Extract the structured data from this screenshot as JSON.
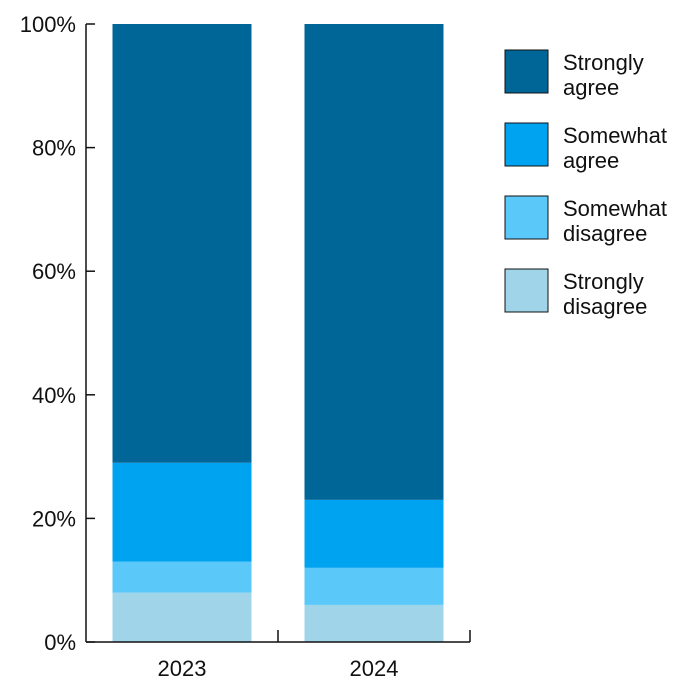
{
  "chart_data": {
    "type": "bar",
    "stacked": true,
    "percent": true,
    "categories": [
      "2023",
      "2024"
    ],
    "series": [
      {
        "name": "Strongly disagree",
        "color": "#a0d4e8",
        "values": [
          8,
          6
        ]
      },
      {
        "name": "Somewhat disagree",
        "color": "#5bc8fa",
        "values": [
          5,
          6
        ]
      },
      {
        "name": "Somewhat agree",
        "color": "#00a3f0",
        "values": [
          16,
          11
        ]
      },
      {
        "name": "Strongly agree",
        "color": "#006597",
        "values": [
          71,
          77
        ]
      }
    ],
    "y_ticks": [
      "0%",
      "20%",
      "40%",
      "60%",
      "80%",
      "100%"
    ],
    "ylim": [
      0,
      100
    ],
    "legend_order": [
      "Strongly agree",
      "Somewhat agree",
      "Somewhat disagree",
      "Strongly disagree"
    ],
    "legend_lines": {
      "Strongly agree": [
        "Strongly",
        "agree"
      ],
      "Somewhat agree": [
        "Somewhat",
        "agree"
      ],
      "Somewhat disagree": [
        "Somewhat",
        "disagree"
      ],
      "Strongly disagree": [
        "Strongly",
        "disagree"
      ]
    },
    "legend_position": "right",
    "grid": false,
    "title": "",
    "xlabel": "",
    "ylabel": ""
  }
}
